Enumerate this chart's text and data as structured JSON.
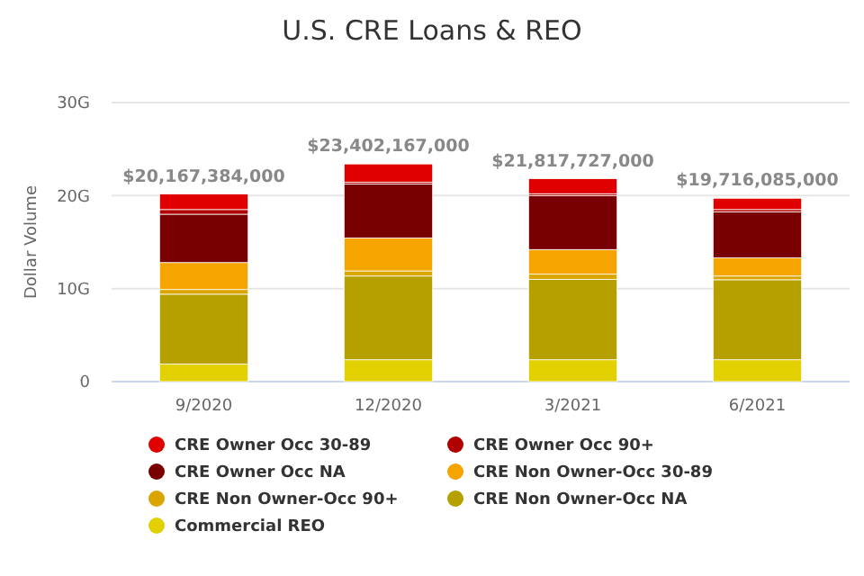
{
  "chart_data": {
    "type": "bar",
    "stacked": true,
    "title": "U.S. CRE Loans & REO",
    "ylabel": "Dollar Volume",
    "categories": [
      "9/2020",
      "12/2020",
      "3/2021",
      "6/2021"
    ],
    "series": [
      {
        "name": "Commercial REO",
        "color": "#e2d000",
        "values": [
          1.9,
          2.35,
          2.35,
          2.35
        ]
      },
      {
        "name": "CRE Non Owner-Occ NA",
        "color": "#b5a000",
        "values": [
          7.5,
          9.0,
          8.65,
          8.6
        ]
      },
      {
        "name": "CRE Non Owner-Occ 90+",
        "color": "#dba500",
        "values": [
          0.5,
          0.55,
          0.55,
          0.4
        ]
      },
      {
        "name": "CRE Non Owner-Occ 30-89",
        "color": "#f5a400",
        "values": [
          2.9,
          3.55,
          2.65,
          1.95
        ]
      },
      {
        "name": "CRE Owner Occ NA",
        "color": "#780000",
        "values": [
          5.2,
          5.8,
          5.8,
          4.95
        ]
      },
      {
        "name": "CRE Owner Occ 90+",
        "color": "#b00000",
        "values": [
          0.5,
          0.2,
          0.2,
          0.25
        ]
      },
      {
        "name": "CRE Owner Occ 30-89",
        "color": "#e00000",
        "values": [
          1.667384,
          1.952167,
          1.617727,
          1.216085
        ]
      }
    ],
    "totals": [
      "$20,167,384,000",
      "$23,402,167,000",
      "$21,817,727,000",
      "$19,716,085,000"
    ],
    "ylim": [
      0,
      30
    ],
    "yticks": [
      {
        "value": 0,
        "label": "0"
      },
      {
        "value": 10,
        "label": "10G"
      },
      {
        "value": 20,
        "label": "20G"
      },
      {
        "value": 30,
        "label": "30G"
      }
    ],
    "grid": "y",
    "legend": "bottom"
  }
}
